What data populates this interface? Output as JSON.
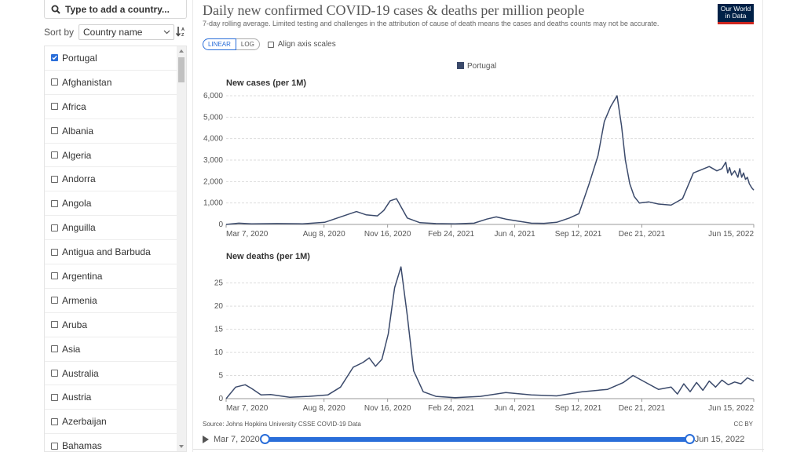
{
  "sidebar": {
    "search_placeholder": "Type to add a country...",
    "sort_label": "Sort by",
    "sort_value": "Country name",
    "countries": [
      {
        "name": "Portugal",
        "checked": true
      },
      {
        "name": "Afghanistan",
        "checked": false
      },
      {
        "name": "Africa",
        "checked": false
      },
      {
        "name": "Albania",
        "checked": false
      },
      {
        "name": "Algeria",
        "checked": false
      },
      {
        "name": "Andorra",
        "checked": false
      },
      {
        "name": "Angola",
        "checked": false
      },
      {
        "name": "Anguilla",
        "checked": false
      },
      {
        "name": "Antigua and Barbuda",
        "checked": false
      },
      {
        "name": "Argentina",
        "checked": false
      },
      {
        "name": "Armenia",
        "checked": false
      },
      {
        "name": "Aruba",
        "checked": false
      },
      {
        "name": "Asia",
        "checked": false
      },
      {
        "name": "Australia",
        "checked": false
      },
      {
        "name": "Austria",
        "checked": false
      },
      {
        "name": "Azerbaijan",
        "checked": false
      },
      {
        "name": "Bahamas",
        "checked": false
      }
    ]
  },
  "header": {
    "title": "Daily new confirmed COVID-19 cases & deaths per million people",
    "subtitle": "7-day rolling average. Limited testing and challenges in the attribution of cause of death means the cases and deaths counts may not be accurate.",
    "logo_line1": "Our World",
    "logo_line2": "in Data"
  },
  "controls": {
    "linear_label": "LINEAR",
    "log_label": "LOG",
    "align_label": "Align axis scales"
  },
  "footer": {
    "source": "Source: Johns Hopkins University CSSE COVID-19 Data",
    "license": "CC BY",
    "start_date": "Mar 7, 2020",
    "end_date": "Jun 15, 2022"
  },
  "colors": {
    "series": "#3b4a6b",
    "accent": "#2a6ed9",
    "grid": "#dddddd"
  },
  "chart_data": [
    {
      "type": "line",
      "title": "New cases (per 1M)",
      "legend": [
        "Portugal"
      ],
      "x_ticks": [
        "Mar 7, 2020",
        "Aug 8, 2020",
        "Nov 16, 2020",
        "Feb 24, 2021",
        "Jun 4, 2021",
        "Sep 12, 2021",
        "Dec 21, 2021",
        "Jun 15, 2022"
      ],
      "y_ticks": [
        "0",
        "1,000",
        "2,000",
        "3,000",
        "4,000",
        "5,000",
        "6,000"
      ],
      "ylim": [
        0,
        6000
      ],
      "x_range_days": [
        0,
        830
      ],
      "series": [
        {
          "name": "Portugal",
          "x": [
            0,
            20,
            40,
            80,
            120,
            155,
            175,
            190,
            205,
            220,
            238,
            248,
            258,
            268,
            285,
            305,
            330,
            360,
            390,
            410,
            425,
            440,
            460,
            480,
            500,
            520,
            540,
            555,
            570,
            585,
            595,
            605,
            615,
            622,
            628,
            635,
            642,
            650,
            665,
            680,
            700,
            718,
            735,
            760,
            772,
            780,
            783,
            786,
            789,
            792,
            795,
            800,
            805,
            808,
            811,
            814,
            817,
            820,
            823,
            827,
            830
          ],
          "values": [
            0,
            60,
            30,
            40,
            30,
            100,
            300,
            450,
            600,
            450,
            400,
            650,
            1100,
            1200,
            300,
            80,
            40,
            30,
            60,
            250,
            350,
            250,
            150,
            60,
            50,
            100,
            300,
            500,
            1800,
            3200,
            4800,
            5500,
            6000,
            4600,
            3000,
            1900,
            1300,
            1000,
            1050,
            950,
            900,
            1200,
            2400,
            2700,
            2500,
            2600,
            2750,
            2900,
            2400,
            2650,
            2300,
            2500,
            2200,
            2600,
            2200,
            2400,
            2100,
            2200,
            1900,
            1700,
            1600
          ]
        }
      ]
    },
    {
      "type": "line",
      "title": "New deaths (per 1M)",
      "legend": [
        "Portugal"
      ],
      "x_ticks": [
        "Mar 7, 2020",
        "Aug 8, 2020",
        "Nov 16, 2020",
        "Feb 24, 2021",
        "Jun 4, 2021",
        "Sep 12, 2021",
        "Dec 21, 2021",
        "Jun 15, 2022"
      ],
      "y_ticks": [
        "0",
        "5",
        "10",
        "15",
        "20",
        "25"
      ],
      "ylim": [
        0,
        28
      ],
      "x_range_days": [
        0,
        830
      ],
      "series": [
        {
          "name": "Portugal",
          "x": [
            0,
            15,
            30,
            40,
            55,
            70,
            85,
            100,
            130,
            160,
            180,
            200,
            215,
            225,
            235,
            245,
            255,
            265,
            275,
            285,
            295,
            310,
            330,
            360,
            400,
            440,
            480,
            520,
            560,
            600,
            625,
            640,
            660,
            680,
            700,
            710,
            720,
            730,
            740,
            750,
            760,
            770,
            780,
            790,
            800,
            810,
            820,
            830
          ],
          "values": [
            0,
            2.5,
            3.0,
            2.2,
            0.8,
            0.9,
            0.6,
            0.3,
            0.5,
            0.8,
            2.5,
            6.8,
            7.8,
            8.8,
            7.0,
            8.5,
            14,
            24,
            28.5,
            18,
            6.0,
            1.5,
            0.5,
            0.2,
            0.5,
            1.3,
            0.8,
            0.6,
            1.5,
            2.0,
            3.5,
            5.0,
            3.5,
            2.0,
            2.5,
            1.0,
            3.2,
            1.5,
            3.5,
            1.8,
            3.8,
            2.5,
            4.0,
            3.0,
            3.6,
            3.2,
            4.5,
            3.8
          ]
        }
      ]
    }
  ]
}
